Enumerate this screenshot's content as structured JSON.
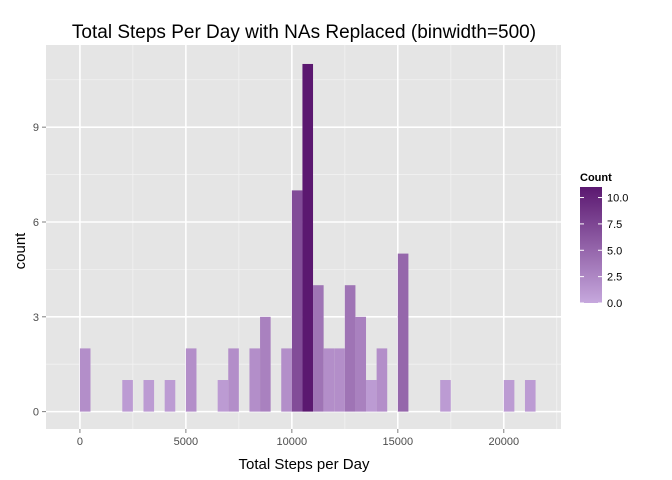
{
  "chart_data": {
    "type": "bar",
    "title": "Total Steps Per Day with NAs Replaced (binwidth=500)",
    "xlabel": "Total Steps per Day",
    "ylabel": "count",
    "xlim": [
      -1600,
      22700
    ],
    "ylim": [
      -0.55,
      11.6
    ],
    "binwidth": 500,
    "x_ticks": [
      0,
      5000,
      10000,
      15000,
      20000
    ],
    "x_tick_labels": [
      "0",
      "5000",
      "10000",
      "15000",
      "20000"
    ],
    "y_ticks": [
      0,
      3,
      6,
      9
    ],
    "y_tick_labels": [
      "0",
      "3",
      "6",
      "9"
    ],
    "grid": true,
    "bins": [
      {
        "start": 0,
        "count": 2
      },
      {
        "start": 2000,
        "count": 1
      },
      {
        "start": 3000,
        "count": 1
      },
      {
        "start": 4000,
        "count": 1
      },
      {
        "start": 5000,
        "count": 2
      },
      {
        "start": 6500,
        "count": 1
      },
      {
        "start": 7000,
        "count": 2
      },
      {
        "start": 8000,
        "count": 2
      },
      {
        "start": 8500,
        "count": 3
      },
      {
        "start": 9500,
        "count": 2
      },
      {
        "start": 10000,
        "count": 7
      },
      {
        "start": 10500,
        "count": 11
      },
      {
        "start": 11000,
        "count": 4
      },
      {
        "start": 11500,
        "count": 2
      },
      {
        "start": 12000,
        "count": 2
      },
      {
        "start": 12500,
        "count": 4
      },
      {
        "start": 13000,
        "count": 3
      },
      {
        "start": 13500,
        "count": 1
      },
      {
        "start": 14000,
        "count": 2
      },
      {
        "start": 15000,
        "count": 5
      },
      {
        "start": 17000,
        "count": 1
      },
      {
        "start": 20000,
        "count": 1
      },
      {
        "start": 21000,
        "count": 1
      }
    ],
    "legend": {
      "title": "Count",
      "placement": "right",
      "range": [
        0,
        11
      ],
      "ticks": [
        0,
        2.5,
        5,
        7.5,
        10
      ],
      "tick_labels": [
        "0.0",
        "2.5",
        "5.0",
        "7.5",
        "10.0"
      ],
      "low_color": "#c6a8dd",
      "high_color": "#5b1870"
    },
    "colors": {
      "panel_background": "#e5e5e5",
      "grid_major": "#ffffff",
      "grid_minor": "#f2f2f2",
      "tick_text": "#4d4d4d"
    }
  }
}
